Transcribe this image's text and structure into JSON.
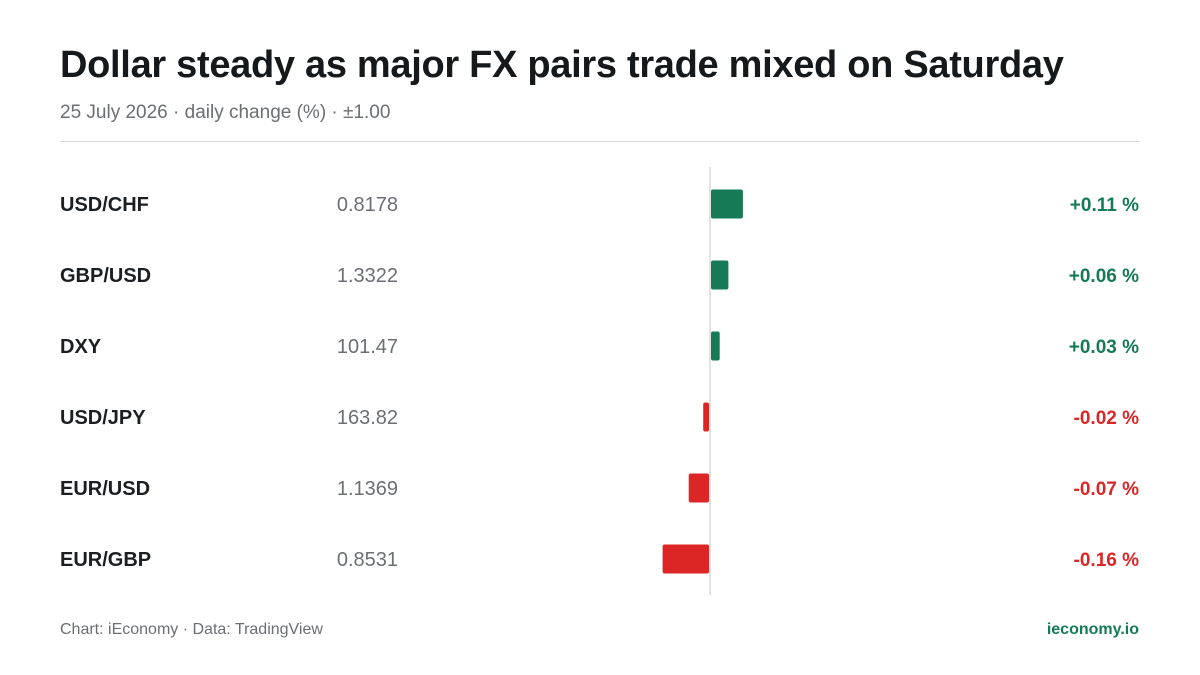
{
  "header": {
    "title": "Dollar steady as major FX pairs trade mixed on Saturday",
    "subtitle": "25 July 2026 · daily change (%) · ±1.00"
  },
  "footer": {
    "source": "Chart: iEconomy · Data: TradingView",
    "brand": "ieconomy.io"
  },
  "colors": {
    "positive": "#157a55",
    "negative": "#dc2626",
    "label": "#1b1f22",
    "price": "#6b6f73",
    "axis": "#d9d9d9"
  },
  "chart_data": {
    "type": "bar",
    "orientation": "horizontal",
    "categories": [
      "USD/CHF",
      "GBP/USD",
      "DXY",
      "USD/JPY",
      "EUR/USD",
      "EUR/GBP"
    ],
    "prices": [
      "0.8178",
      "1.3322",
      "101.47",
      "163.82",
      "1.1369",
      "0.8531"
    ],
    "values": [
      0.11,
      0.06,
      0.03,
      -0.02,
      -0.07,
      -0.16
    ],
    "value_labels": [
      "+0.11 %",
      "+0.06 %",
      "+0.03 %",
      "-0.02 %",
      "-0.07 %",
      "-0.16 %"
    ],
    "unit": "%",
    "grid": false,
    "legend": "none"
  }
}
